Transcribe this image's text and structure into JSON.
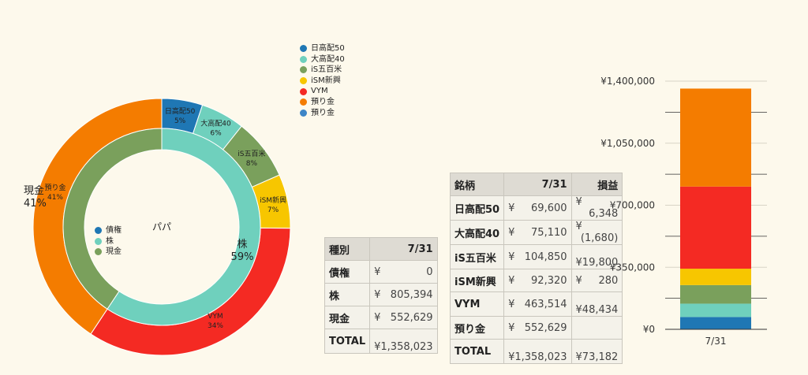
{
  "donut": {
    "center_label": "パパ",
    "outer_legend": [
      {
        "name": "日高配50",
        "color": "#1f77b4"
      },
      {
        "name": "大高配40",
        "color": "#6fd0bd"
      },
      {
        "name": "iS五百米",
        "color": "#7aa05c"
      },
      {
        "name": "iSM新興",
        "color": "#f7c600"
      },
      {
        "name": "VYM",
        "color": "#f42a23"
      },
      {
        "name": "預り金",
        "color": "#f47c00"
      },
      {
        "name": "預り金",
        "color": "#3d85c6"
      }
    ],
    "inner_legend": [
      {
        "name": "債権",
        "color": "#1f77b4"
      },
      {
        "name": "株",
        "color": "#6fd0bd"
      },
      {
        "name": "現金",
        "color": "#7aa05c"
      }
    ]
  },
  "chart_data": [
    {
      "type": "pie",
      "ring": "outer",
      "series": [
        {
          "name": "日高配50",
          "value": 69600,
          "label": "5%",
          "color": "#1f77b4"
        },
        {
          "name": "大高配40",
          "value": 75110,
          "label": "6%",
          "color": "#6fd0bd"
        },
        {
          "name": "iS五百米",
          "value": 104850,
          "label": "8%",
          "color": "#7aa05c"
        },
        {
          "name": "iSM新興",
          "value": 92320,
          "label": "7%",
          "color": "#f7c600"
        },
        {
          "name": "VYM",
          "value": 463514,
          "label": "34%",
          "color": "#f42a23"
        },
        {
          "name": "預り金",
          "value": 552629,
          "label": "41%",
          "color": "#f47c00"
        }
      ]
    },
    {
      "type": "pie",
      "ring": "inner",
      "series": [
        {
          "name": "債権",
          "value": 0,
          "color": "#1f77b4"
        },
        {
          "name": "株",
          "value": 805394,
          "label": "59%",
          "color": "#6fd0bd"
        },
        {
          "name": "現金",
          "value": 552629,
          "label": "41%",
          "color": "#7aa05c"
        }
      ]
    },
    {
      "type": "bar",
      "stacked": true,
      "categories": [
        "7/31"
      ],
      "ylim": [
        0,
        1400000
      ],
      "yticks": [
        "¥0",
        "¥350,000",
        "¥700,000",
        "¥1,050,000",
        "¥1,400,000"
      ],
      "ytick_values": [
        0,
        350000,
        700000,
        1050000,
        1400000
      ],
      "series": [
        {
          "name": "日高配50",
          "values": [
            69600
          ],
          "color": "#1f77b4"
        },
        {
          "name": "大高配40",
          "values": [
            75110
          ],
          "color": "#6fd0bd"
        },
        {
          "name": "iS五百米",
          "values": [
            104850
          ],
          "color": "#7aa05c"
        },
        {
          "name": "iSM新興",
          "values": [
            92320
          ],
          "color": "#f7c600"
        },
        {
          "name": "VYM",
          "values": [
            463514
          ],
          "color": "#f42a23"
        },
        {
          "name": "預り金",
          "values": [
            552629
          ],
          "color": "#f47c00"
        }
      ]
    }
  ],
  "type_table": {
    "headers": [
      "種別",
      "7/31"
    ],
    "rows": [
      {
        "label": "債権",
        "yen": "¥",
        "amount": "0"
      },
      {
        "label": "株",
        "yen": "¥",
        "amount": "805,394"
      },
      {
        "label": "現金",
        "yen": "¥",
        "amount": "552,629"
      },
      {
        "label": "TOTAL",
        "yen": "",
        "amount": "¥1,358,023"
      }
    ]
  },
  "holdings_table": {
    "headers": [
      "銘柄",
      "7/31",
      "損益"
    ],
    "rows": [
      {
        "label": "日高配50",
        "yen": "¥",
        "amount": "69,600",
        "pl_yen": "¥",
        "pl": "6,348"
      },
      {
        "label": "大高配40",
        "yen": "¥",
        "amount": "75,110",
        "pl_yen": "¥",
        "pl": "(1,680)"
      },
      {
        "label": "iS五百米",
        "yen": "¥",
        "amount": "104,850",
        "pl_yen": "",
        "pl": "¥19,800"
      },
      {
        "label": "iSM新興",
        "yen": "¥",
        "amount": "92,320",
        "pl_yen": "¥",
        "pl": "280"
      },
      {
        "label": "VYM",
        "yen": "¥",
        "amount": "463,514",
        "pl_yen": "",
        "pl": "¥48,434"
      },
      {
        "label": "預り金",
        "yen": "¥",
        "amount": "552,629",
        "pl_yen": "",
        "pl": ""
      },
      {
        "label": "TOTAL",
        "yen": "",
        "amount": "¥1,358,023",
        "pl_yen": "",
        "pl": "¥73,182"
      }
    ]
  }
}
